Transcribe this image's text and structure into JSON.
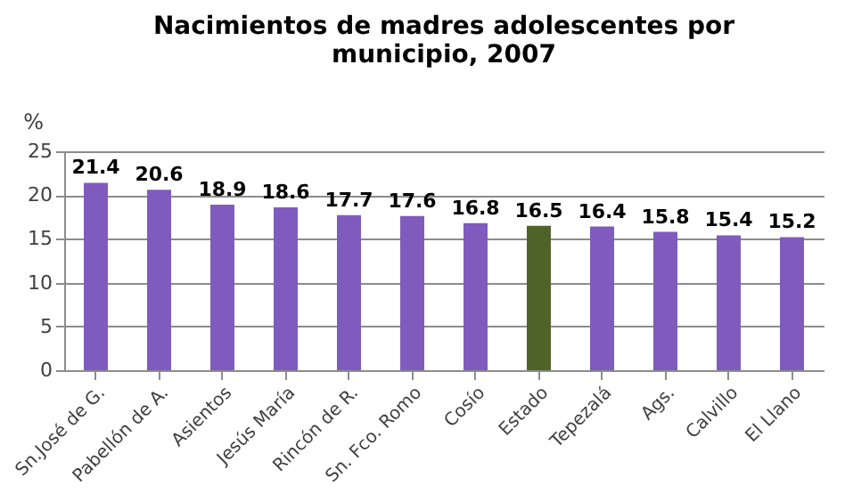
{
  "chart_data": {
    "type": "bar",
    "title": "Nacimientos de madres adolescentes por municipio, 2007",
    "ylabel": "%",
    "categories": [
      "Sn.José de G.",
      "Pabellón de A.",
      "Asientos",
      "Jesús María",
      "Rincón de R.",
      "Sn. Fco. Romo",
      "Cosío",
      "Estado",
      "Tepezalá",
      "Ags.",
      "Calvillo",
      "El Llano"
    ],
    "values": [
      21.4,
      20.6,
      18.9,
      18.6,
      17.7,
      17.6,
      16.8,
      16.5,
      16.4,
      15.8,
      15.4,
      15.2
    ],
    "colors": [
      "#7f5bbd",
      "#7f5bbd",
      "#7f5bbd",
      "#7f5bbd",
      "#7f5bbd",
      "#7f5bbd",
      "#7f5bbd",
      "#4f6228",
      "#7f5bbd",
      "#7f5bbd",
      "#7f5bbd",
      "#7f5bbd"
    ],
    "ylim": [
      0,
      25
    ],
    "yticks": [
      0,
      5,
      10,
      15,
      20,
      25
    ],
    "grid": "y",
    "data_labels": true
  }
}
